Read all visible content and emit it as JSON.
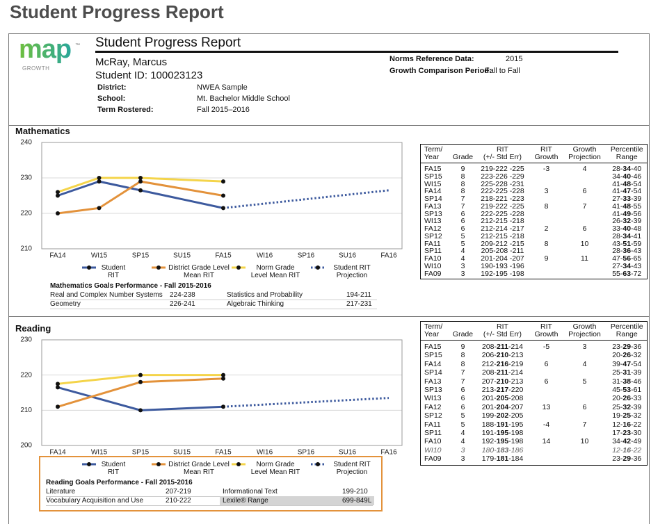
{
  "page_title": "Student Progress Report",
  "logo": {
    "name": "map",
    "mark": "™",
    "tagline": "GROWTH"
  },
  "report": {
    "title": "Student Progress Report",
    "name": "McRay, Marcus",
    "student_id": "Student ID: 100023123",
    "fields": [
      [
        "District:",
        "NWEA Sample"
      ],
      [
        "School:",
        "Mt. Bachelor Middle School"
      ],
      [
        "Term Rostered:",
        "Fall 2015–2016"
      ]
    ],
    "norms": [
      [
        "Norms Reference Data:",
        "2015"
      ],
      [
        "Growth Comparison Period:",
        "Fall to Fall"
      ]
    ]
  },
  "chart_data": [
    {
      "type": "line",
      "title": "Mathematics",
      "categories": [
        "FA14",
        "WI15",
        "SP15",
        "SU15",
        "FA15",
        "WI16",
        "SP16",
        "SU16",
        "FA16"
      ],
      "ylim": [
        210,
        240
      ],
      "yticks": [
        210,
        220,
        230,
        240
      ],
      "grid": true,
      "series": [
        {
          "name": "Student RIT",
          "color": "#3d5a9e",
          "style": "solid",
          "x": [
            "FA14",
            "WI15",
            "SP15",
            "FA15"
          ],
          "values": [
            225,
            229,
            226.5,
            221.5
          ]
        },
        {
          "name": "District Grade Level Mean RIT",
          "color": "#e3923b",
          "style": "solid",
          "x": [
            "FA14",
            "WI15",
            "SP15",
            "FA15"
          ],
          "values": [
            220,
            221.5,
            229,
            225
          ]
        },
        {
          "name": "Norm Grade Level Mean RIT",
          "color": "#f4d44a",
          "style": "solid",
          "x": [
            "FA14",
            "WI15",
            "SP15",
            "FA15"
          ],
          "values": [
            226,
            230,
            230,
            229
          ]
        },
        {
          "name": "Student RIT Projection",
          "color": "#3d5a9e",
          "style": "dotted",
          "x": [
            "FA15",
            "FA16"
          ],
          "values": [
            221.5,
            226.5
          ]
        }
      ]
    },
    {
      "type": "line",
      "title": "Reading",
      "categories": [
        "FA14",
        "WI15",
        "SP15",
        "SU15",
        "FA15",
        "WI16",
        "SP16",
        "SU16",
        "FA16"
      ],
      "ylim": [
        200,
        230
      ],
      "yticks": [
        200,
        210,
        220,
        230
      ],
      "grid": true,
      "series": [
        {
          "name": "Student RIT",
          "color": "#3d5a9e",
          "style": "solid",
          "x": [
            "FA14",
            "SP15",
            "FA15"
          ],
          "values": [
            216.5,
            210,
            211
          ]
        },
        {
          "name": "District Grade Level Mean RIT",
          "color": "#e3923b",
          "style": "solid",
          "x": [
            "FA14",
            "SP15",
            "FA15"
          ],
          "values": [
            211,
            218,
            219
          ]
        },
        {
          "name": "Norm Grade Level Mean RIT",
          "color": "#f4d44a",
          "style": "solid",
          "x": [
            "FA14",
            "SP15",
            "FA15"
          ],
          "values": [
            217.5,
            220,
            220
          ]
        },
        {
          "name": "Student RIT Projection",
          "color": "#3d5a9e",
          "style": "dotted",
          "x": [
            "FA15",
            "FA16"
          ],
          "values": [
            211,
            213.5
          ]
        }
      ]
    }
  ],
  "math_goals": {
    "title": "Mathematics Goals Performance - Fall 2015-2016",
    "items": [
      [
        "Real and Complex Number Systems",
        "224-238"
      ],
      [
        "Statistics and Probability",
        "194-211"
      ],
      [
        "Geometry",
        "226-241"
      ],
      [
        "Algebraic Thinking",
        "217-231"
      ]
    ]
  },
  "reading_goals": {
    "title": "Reading Goals Performance - Fall 2015-2016",
    "highlight": 3,
    "items": [
      [
        "Literature",
        "207-219"
      ],
      [
        "Informational Text",
        "199-210"
      ],
      [
        "Vocabulary Acquisition and Use",
        "210-222"
      ],
      [
        "Lexile® Range",
        "699-849L"
      ]
    ]
  },
  "math_table": {
    "header": [
      [
        "Term/",
        "Year"
      ],
      [
        "Grade"
      ],
      [
        "RIT",
        "(+/- Std Err)"
      ],
      [
        "RIT",
        "Growth"
      ],
      [
        "Growth",
        "Projection"
      ],
      [
        "Percentile",
        "Range"
      ]
    ],
    "bold_columns": [
      5
    ],
    "rows": [
      [
        "FA15",
        "9",
        "219-222 -225",
        "-3",
        "4",
        "28-34-40"
      ],
      [
        "SP15",
        "8",
        "223-226 -229",
        null,
        null,
        "34-40-46"
      ],
      [
        "WI15",
        "8",
        "225-228 -231",
        null,
        null,
        "41-48-54"
      ],
      [
        "FA14",
        "8",
        "222-225 -228",
        "3",
        "6",
        "41-47-54"
      ],
      [
        "SP14",
        "7",
        "218-221 -223",
        null,
        null,
        "27-33-39"
      ],
      [
        "FA13",
        "7",
        "219-222 -225",
        "8",
        "7",
        "41-48-55"
      ],
      [
        "SP13",
        "6",
        "222-225 -228",
        null,
        null,
        "41-49-56"
      ],
      [
        "WI13",
        "6",
        "212-215 -218",
        null,
        null,
        "26-32-39"
      ],
      [
        "FA12",
        "6",
        "212-214 -217",
        "2",
        "6",
        "33-40-48"
      ],
      [
        "SP12",
        "5",
        "212-215 -218",
        null,
        null,
        "28-34-41"
      ],
      [
        "FA11",
        "5",
        "209-212 -215",
        "8",
        "10",
        "43-51-59"
      ],
      [
        "SP11",
        "4",
        "205-208 -211",
        null,
        null,
        "28-36-43"
      ],
      [
        "FA10",
        "4",
        "201-204 -207",
        "9",
        "11",
        "47-56-65"
      ],
      [
        "WI10",
        "3",
        "190-193 -196",
        null,
        null,
        "27-34-43"
      ],
      [
        "FA09",
        "3",
        "192-195 -198",
        null,
        null,
        "55-63-72"
      ]
    ]
  },
  "reading_table": {
    "header": [
      [
        "Term/",
        "Year"
      ],
      [
        "Grade"
      ],
      [
        "RIT",
        "(+/- Std Err)"
      ],
      [
        "RIT",
        "Growth"
      ],
      [
        "Growth",
        "Projection"
      ],
      [
        "Percentile",
        "Range"
      ]
    ],
    "bold_columns": [
      2,
      5
    ],
    "italic_rows": [
      12
    ],
    "rows": [
      [
        "FA15",
        "9",
        "208-211-214",
        "-5",
        "3",
        "23-29-36"
      ],
      [
        "SP15",
        "8",
        "206-210-213",
        null,
        null,
        "20-26-32"
      ],
      [
        "FA14",
        "8",
        "212-216-219",
        "6",
        "4",
        "39-47-54"
      ],
      [
        "SP14",
        "7",
        "208-211-214",
        null,
        null,
        "25-31-39"
      ],
      [
        "FA13",
        "7",
        "207-210-213",
        "6",
        "5",
        "31-38-46"
      ],
      [
        "SP13",
        "6",
        "213-217-220",
        null,
        null,
        "45-53-61"
      ],
      [
        "WI13",
        "6",
        "201-205-208",
        null,
        null,
        "20-26-33"
      ],
      [
        "FA12",
        "6",
        "201-204-207",
        "13",
        "6",
        "25-32-39"
      ],
      [
        "SP12",
        "5",
        "199-202-205",
        null,
        null,
        "19-25-32"
      ],
      [
        "FA11",
        "5",
        "188-191-195",
        "-4",
        "7",
        "12-16-22"
      ],
      [
        "SP11",
        "4",
        "191-195-198",
        null,
        null,
        "17-23-30"
      ],
      [
        "FA10",
        "4",
        "192-195-198",
        "14",
        "10",
        "34-42-49"
      ],
      [
        "WI10",
        "3",
        "180-183-186",
        null,
        null,
        "12-16-22"
      ],
      [
        "FA09",
        "3",
        "179-181-184",
        null,
        null,
        "23-29-36"
      ]
    ]
  }
}
